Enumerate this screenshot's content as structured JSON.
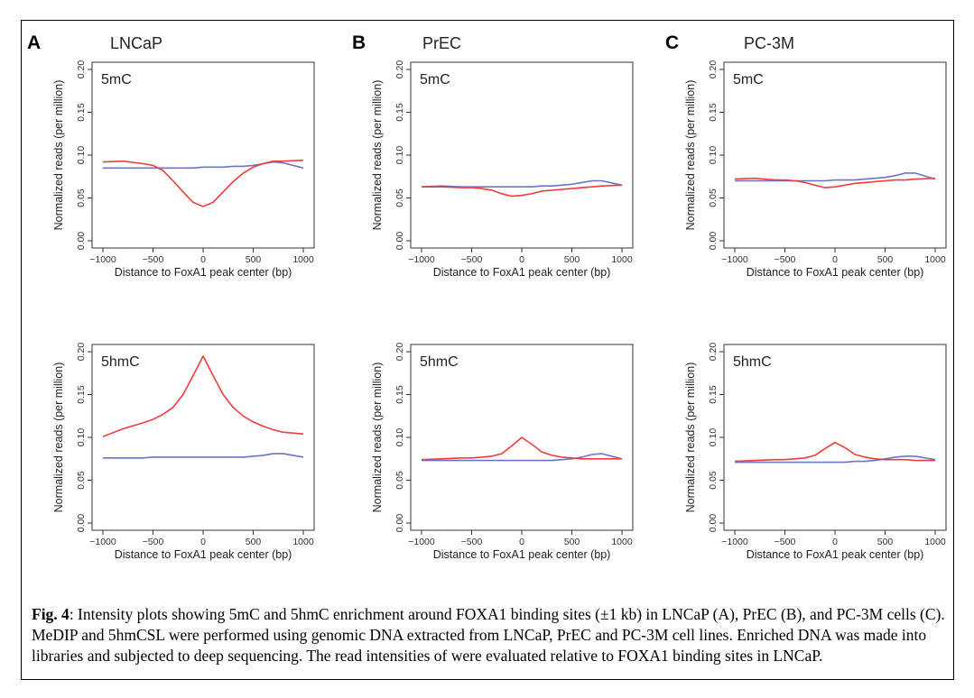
{
  "panels": [
    {
      "letter": "A",
      "cell_line": "LNCaP"
    },
    {
      "letter": "B",
      "cell_line": "PrEC"
    },
    {
      "letter": "C",
      "cell_line": "PC-3M"
    }
  ],
  "caption": {
    "label": "Fig. 4",
    "text": ": Intensity plots showing 5mC and 5hmC enrichment around FOXA1 binding sites (±1 kb) in LNCaP (A), PrEC (B), and PC-3M cells (C). MeDIP and 5hmCSL were performed using genomic DNA extracted from LNCaP, PrEC and PC-3M cell lines. Enriched DNA was made into libraries and subjected to deep sequencing. The read intensities of were evaluated relative to FOXA1 binding sites in LNCaP."
  },
  "colors": {
    "red_series": "#f03c3c",
    "blue_series": "#6a74c8"
  },
  "chart_data": [
    {
      "type": "line",
      "panel": "A",
      "cell_line": "LNCaP",
      "mark": "5mC",
      "xlabel": "Distance to FoxA1 peak center (bp)",
      "ylabel": "Normalized reads (per million)",
      "xlim": [
        -1000,
        1000
      ],
      "ylim": [
        0,
        0.2
      ],
      "xticks": [
        -1000,
        -500,
        0,
        500,
        1000
      ],
      "yticks": [
        0.0,
        0.05,
        0.1,
        0.15,
        0.2
      ],
      "xtick_labels": [
        "−1000",
        "−500",
        "0",
        "500",
        "1000"
      ],
      "ytick_labels": [
        "0.00",
        "0.05",
        "0.10",
        "0.15",
        "0.20"
      ],
      "x": [
        -1000,
        -800,
        -600,
        -500,
        -400,
        -300,
        -200,
        -100,
        0,
        100,
        200,
        300,
        400,
        500,
        600,
        700,
        800,
        1000
      ],
      "series": [
        {
          "color": "red",
          "values": [
            0.092,
            0.093,
            0.09,
            0.088,
            0.082,
            0.07,
            0.057,
            0.045,
            0.04,
            0.045,
            0.057,
            0.069,
            0.079,
            0.086,
            0.09,
            0.093,
            0.093,
            0.094
          ]
        },
        {
          "color": "blue",
          "values": [
            0.085,
            0.085,
            0.085,
            0.085,
            0.085,
            0.085,
            0.085,
            0.085,
            0.086,
            0.086,
            0.086,
            0.087,
            0.087,
            0.088,
            0.09,
            0.092,
            0.091,
            0.085
          ]
        }
      ]
    },
    {
      "type": "line",
      "panel": "B",
      "cell_line": "PrEC",
      "mark": "5mC",
      "xlabel": "Distance to FoxA1 peak center (bp)",
      "ylabel": "Normalized reads (per million)",
      "xlim": [
        -1000,
        1000
      ],
      "ylim": [
        0,
        0.2
      ],
      "xticks": [
        -1000,
        -500,
        0,
        500,
        1000
      ],
      "yticks": [
        0.0,
        0.05,
        0.1,
        0.15,
        0.2
      ],
      "xtick_labels": [
        "−1000",
        "−500",
        "0",
        "500",
        "1000"
      ],
      "ytick_labels": [
        "0.00",
        "0.05",
        "0.10",
        "0.15",
        "0.20"
      ],
      "x": [
        -1000,
        -800,
        -600,
        -500,
        -400,
        -300,
        -200,
        -100,
        0,
        100,
        200,
        300,
        400,
        500,
        600,
        700,
        800,
        1000
      ],
      "series": [
        {
          "color": "red",
          "values": [
            0.063,
            0.063,
            0.062,
            0.062,
            0.061,
            0.059,
            0.055,
            0.052,
            0.053,
            0.055,
            0.058,
            0.059,
            0.06,
            0.061,
            0.062,
            0.063,
            0.064,
            0.065
          ]
        },
        {
          "color": "blue",
          "values": [
            0.063,
            0.064,
            0.063,
            0.063,
            0.063,
            0.063,
            0.063,
            0.063,
            0.063,
            0.063,
            0.064,
            0.064,
            0.065,
            0.066,
            0.068,
            0.07,
            0.07,
            0.065
          ]
        }
      ]
    },
    {
      "type": "line",
      "panel": "C",
      "cell_line": "PC-3M",
      "mark": "5mC",
      "xlabel": "Distance to FoxA1 peak center (bp)",
      "ylabel": "Normalized reads (per million)",
      "xlim": [
        -1000,
        1000
      ],
      "ylim": [
        0,
        0.2
      ],
      "xticks": [
        -1000,
        -500,
        0,
        500,
        1000
      ],
      "yticks": [
        0.0,
        0.05,
        0.1,
        0.15,
        0.2
      ],
      "xtick_labels": [
        "−1000",
        "−500",
        "0",
        "500",
        "1000"
      ],
      "ytick_labels": [
        "0.00",
        "0.05",
        "0.10",
        "0.15",
        "0.20"
      ],
      "x": [
        -1000,
        -800,
        -600,
        -500,
        -400,
        -300,
        -200,
        -100,
        0,
        100,
        200,
        300,
        400,
        500,
        600,
        700,
        800,
        1000
      ],
      "series": [
        {
          "color": "red",
          "values": [
            0.072,
            0.073,
            0.071,
            0.071,
            0.07,
            0.068,
            0.065,
            0.062,
            0.063,
            0.065,
            0.067,
            0.068,
            0.069,
            0.07,
            0.071,
            0.071,
            0.072,
            0.073
          ]
        },
        {
          "color": "blue",
          "values": [
            0.07,
            0.07,
            0.07,
            0.07,
            0.07,
            0.07,
            0.07,
            0.07,
            0.071,
            0.071,
            0.071,
            0.072,
            0.073,
            0.074,
            0.076,
            0.079,
            0.079,
            0.072
          ]
        }
      ]
    },
    {
      "type": "line",
      "panel": "A",
      "cell_line": "LNCaP",
      "mark": "5hmC",
      "xlabel": "Distance to FoxA1 peak center (bp)",
      "ylabel": "Normalized reads (per million)",
      "xlim": [
        -1000,
        1000
      ],
      "ylim": [
        0,
        0.2
      ],
      "xticks": [
        -1000,
        -500,
        0,
        500,
        1000
      ],
      "yticks": [
        0.0,
        0.05,
        0.1,
        0.15,
        0.2
      ],
      "xtick_labels": [
        "−1000",
        "−500",
        "0",
        "500",
        "1000"
      ],
      "ytick_labels": [
        "0.00",
        "0.05",
        "0.10",
        "0.15",
        "0.20"
      ],
      "x": [
        -1000,
        -800,
        -600,
        -500,
        -400,
        -300,
        -200,
        -100,
        0,
        100,
        200,
        300,
        400,
        500,
        600,
        700,
        800,
        1000
      ],
      "series": [
        {
          "color": "red",
          "values": [
            0.101,
            0.11,
            0.117,
            0.121,
            0.127,
            0.135,
            0.15,
            0.172,
            0.195,
            0.172,
            0.15,
            0.135,
            0.125,
            0.118,
            0.113,
            0.109,
            0.106,
            0.104
          ]
        },
        {
          "color": "blue",
          "values": [
            0.076,
            0.076,
            0.076,
            0.077,
            0.077,
            0.077,
            0.077,
            0.077,
            0.077,
            0.077,
            0.077,
            0.077,
            0.077,
            0.078,
            0.079,
            0.081,
            0.081,
            0.077
          ]
        }
      ]
    },
    {
      "type": "line",
      "panel": "B",
      "cell_line": "PrEC",
      "mark": "5hmC",
      "xlabel": "Distance to FoxA1 peak center (bp)",
      "ylabel": "Normalized reads (per million)",
      "xlim": [
        -1000,
        1000
      ],
      "ylim": [
        0,
        0.2
      ],
      "xticks": [
        -1000,
        -500,
        0,
        500,
        1000
      ],
      "yticks": [
        0.0,
        0.05,
        0.1,
        0.15,
        0.2
      ],
      "xtick_labels": [
        "−1000",
        "−500",
        "0",
        "500",
        "1000"
      ],
      "ytick_labels": [
        "0.00",
        "0.05",
        "0.10",
        "0.15",
        "0.20"
      ],
      "x": [
        -1000,
        -800,
        -600,
        -500,
        -400,
        -300,
        -200,
        -100,
        0,
        100,
        200,
        300,
        400,
        500,
        600,
        700,
        800,
        1000
      ],
      "series": [
        {
          "color": "red",
          "values": [
            0.074,
            0.075,
            0.076,
            0.076,
            0.077,
            0.078,
            0.081,
            0.09,
            0.1,
            0.092,
            0.083,
            0.079,
            0.077,
            0.076,
            0.075,
            0.075,
            0.075,
            0.075
          ]
        },
        {
          "color": "blue",
          "values": [
            0.073,
            0.073,
            0.073,
            0.073,
            0.073,
            0.073,
            0.073,
            0.073,
            0.073,
            0.073,
            0.073,
            0.073,
            0.074,
            0.075,
            0.077,
            0.08,
            0.081,
            0.075
          ]
        }
      ]
    },
    {
      "type": "line",
      "panel": "C",
      "cell_line": "PC-3M",
      "mark": "5hmC",
      "xlabel": "Distance to FoxA1 peak center (bp)",
      "ylabel": "Normalized reads (per million)",
      "xlim": [
        -1000,
        1000
      ],
      "ylim": [
        0,
        0.2
      ],
      "xticks": [
        -1000,
        -500,
        0,
        500,
        1000
      ],
      "yticks": [
        0.0,
        0.05,
        0.1,
        0.15,
        0.2
      ],
      "xtick_labels": [
        "−1000",
        "−500",
        "0",
        "500",
        "1000"
      ],
      "ytick_labels": [
        "0.00",
        "0.05",
        "0.10",
        "0.15",
        "0.20"
      ],
      "x": [
        -1000,
        -800,
        -600,
        -500,
        -400,
        -300,
        -200,
        -100,
        0,
        100,
        200,
        300,
        400,
        500,
        600,
        700,
        800,
        1000
      ],
      "series": [
        {
          "color": "red",
          "values": [
            0.072,
            0.073,
            0.074,
            0.074,
            0.075,
            0.076,
            0.079,
            0.087,
            0.094,
            0.088,
            0.08,
            0.077,
            0.075,
            0.074,
            0.074,
            0.074,
            0.073,
            0.073
          ]
        },
        {
          "color": "blue",
          "values": [
            0.071,
            0.071,
            0.071,
            0.071,
            0.071,
            0.071,
            0.071,
            0.071,
            0.071,
            0.071,
            0.072,
            0.072,
            0.073,
            0.075,
            0.077,
            0.078,
            0.078,
            0.074
          ]
        }
      ]
    }
  ]
}
